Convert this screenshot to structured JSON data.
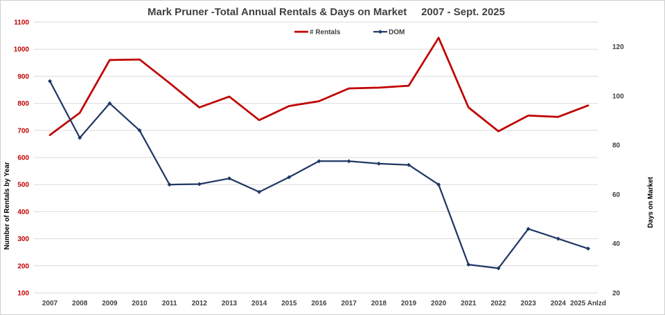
{
  "chart_data": {
    "type": "line",
    "title": "Mark Pruner -Total Annual Rentals & Days on Market     2007 - Sept. 2025",
    "categories": [
      "2007",
      "2008",
      "2009",
      "2010",
      "2011",
      "2012",
      "2013",
      "2014",
      "2015",
      "2016",
      "2017",
      "2018",
      "2019",
      "2020",
      "2021",
      "2022",
      "2023",
      "2024",
      "2025 Anlzd"
    ],
    "y_left": {
      "label": "Number of Rentals by Year",
      "range": [
        100,
        1100
      ],
      "ticks": [
        100,
        200,
        300,
        400,
        500,
        600,
        700,
        800,
        900,
        1000,
        1100
      ],
      "color": "#c00000"
    },
    "y_right": {
      "label": "Days on Market",
      "range": [
        20,
        130
      ],
      "ticks": [
        20,
        40,
        60,
        80,
        100,
        120
      ],
      "color": "#404040"
    },
    "grid": true,
    "legend_position": "top-center",
    "series": [
      {
        "name": "# Rentals",
        "axis": "left",
        "color": "#c00000",
        "values": [
          683,
          765,
          960,
          962,
          875,
          785,
          825,
          738,
          790,
          808,
          855,
          858,
          865,
          1042,
          785,
          697,
          755,
          750,
          792
        ]
      },
      {
        "name": "DOM",
        "axis": "right",
        "color": "#1f3864",
        "values": [
          106,
          83,
          97,
          86,
          64,
          64.2,
          66.5,
          61,
          67,
          73.5,
          73.5,
          72.5,
          72,
          64,
          31.5,
          30,
          46,
          42,
          38
        ]
      }
    ]
  }
}
